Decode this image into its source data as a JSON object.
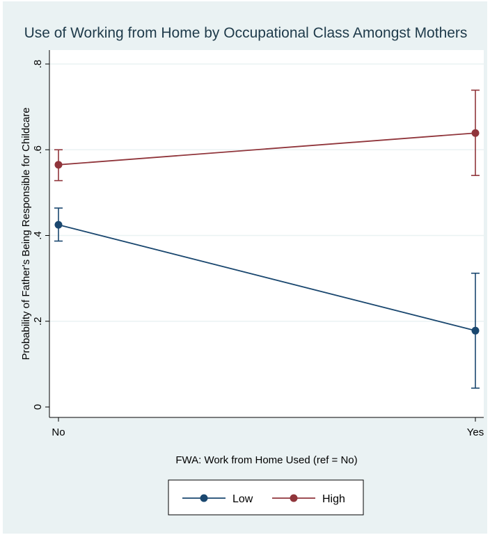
{
  "chart_data": {
    "type": "line",
    "title": "Use of Working from Home by Occupational Class Amongst Mothers",
    "xlabel": "FWA: Work from Home Used (ref = No)",
    "ylabel": "Probability of Father's Being Responsible for Childcare",
    "categories": [
      "No",
      "Yes"
    ],
    "y_ticks": [
      0,
      0.2,
      0.4,
      0.6,
      0.8
    ],
    "y_tick_labels": [
      "0",
      ".2",
      ".4",
      ".6",
      ".8"
    ],
    "ylim": [
      0,
      0.8
    ],
    "grid": true,
    "legend_position": "bottom",
    "series": [
      {
        "name": "Low",
        "color": "#1a476f",
        "values": [
          0.425,
          0.178
        ],
        "ci_lower": [
          0.387,
          0.044
        ],
        "ci_upper": [
          0.464,
          0.312
        ]
      },
      {
        "name": "High",
        "color": "#90353b",
        "values": [
          0.565,
          0.639
        ],
        "ci_lower": [
          0.528,
          0.54
        ],
        "ci_upper": [
          0.6,
          0.739
        ]
      }
    ]
  }
}
